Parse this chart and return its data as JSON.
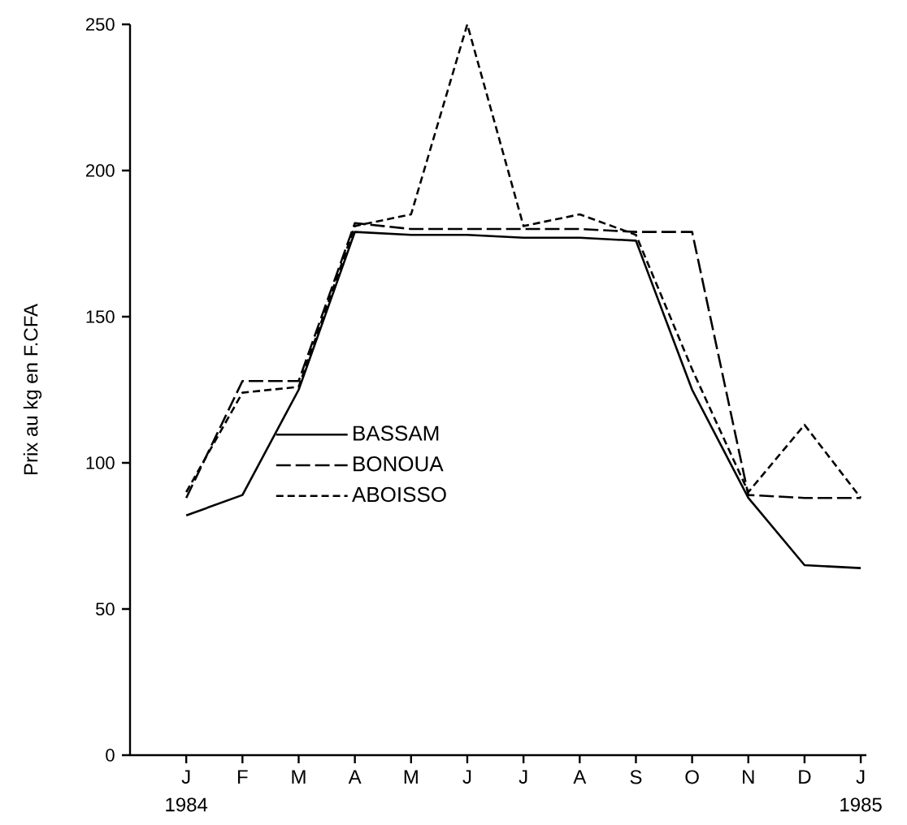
{
  "chart_data": {
    "type": "line",
    "ylabel": "Prix au kg en F.CFA",
    "categories": [
      "J",
      "F",
      "M",
      "A",
      "M",
      "J",
      "J",
      "A",
      "S",
      "O",
      "N",
      "D",
      "J"
    ],
    "series": [
      {
        "name": "BASSAM",
        "color": "#000000",
        "line_style": "solid",
        "values": [
          82,
          89,
          125,
          179,
          178,
          178,
          177,
          177,
          176,
          125,
          88,
          65,
          64
        ]
      },
      {
        "name": "BONOUA",
        "color": "#000000",
        "line_style": "dashed",
        "values": [
          88,
          128,
          128,
          182,
          180,
          180,
          180,
          180,
          179,
          179,
          89,
          88,
          88
        ]
      },
      {
        "name": "ABOISSO",
        "color": "#000000",
        "line_style": "dashed",
        "values": [
          90,
          124,
          126,
          181,
          185,
          250,
          181,
          185,
          178,
          132,
          90,
          113,
          88
        ]
      }
    ],
    "ylim": [
      0,
      250
    ],
    "yticks": [
      0,
      50,
      100,
      150,
      200,
      250
    ],
    "legend": "center left",
    "grid": false,
    "marker": "none",
    "annotations": [
      "1984",
      "1985"
    ]
  }
}
